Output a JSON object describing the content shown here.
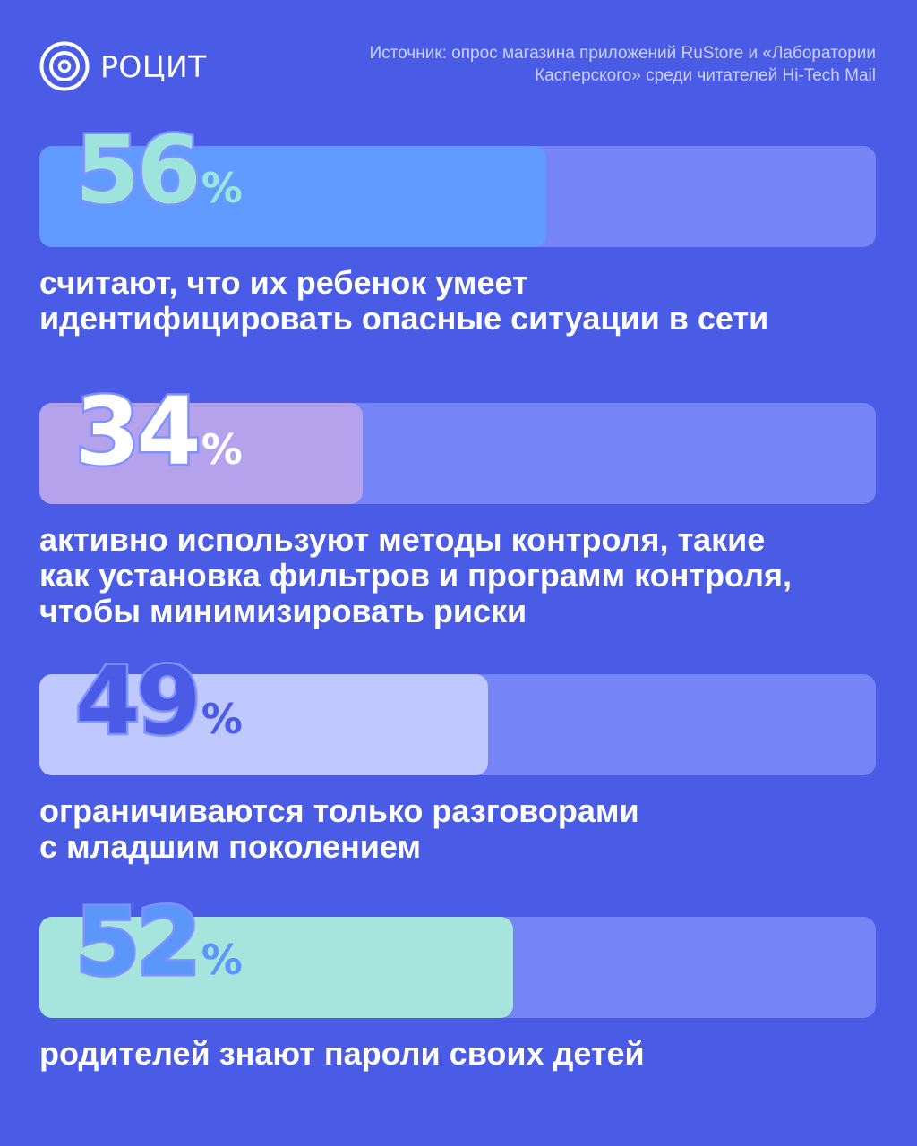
{
  "brand": {
    "name": "РОЦИТ",
    "icon": "concentric-circles-logo-icon"
  },
  "source": {
    "line1": "Источник: опрос магазина приложений RuStore и «Лаборатории",
    "line2": "Касперского» среди читателей Hi-Tech Mail"
  },
  "colors": {
    "background": "#4a5ce6",
    "track": "#7585f5",
    "fill_56": "#619bff",
    "fill_34": "#b5a2ec",
    "fill_49": "#bfc8ff",
    "fill_52": "#a6e5dd",
    "num_56": "#9de4dd",
    "num_34": "#ffffff",
    "num_49": "#4b5be6",
    "num_52": "#5b97f8"
  },
  "chart_data": {
    "type": "bar",
    "orientation": "horizontal",
    "unit": "%",
    "xlim": [
      0,
      100
    ],
    "grid": false,
    "legend": "none",
    "categories": [
      "считают, что их ребенок умеет идентифицировать опасные ситуации в сети",
      "активно используют методы контроля, такие как установка фильтров и программ контроля, чтобы минимизировать риски",
      "ограничиваются только разговорами с младшим поколением",
      "родителей знают пароли своих детей"
    ],
    "values": [
      56,
      34,
      49,
      52
    ]
  },
  "stats": [
    {
      "value": 56,
      "value_text": "56",
      "pct": "%",
      "desc_lines": [
        "считают, что их ребенок умеет",
        "идентифицировать опасные ситуации в сети"
      ]
    },
    {
      "value": 34,
      "value_text": "34",
      "pct": "%",
      "desc_lines": [
        "активно используют методы контроля, такие",
        "как установка фильтров и программ контроля,",
        "чтобы минимизировать риски"
      ]
    },
    {
      "value": 49,
      "value_text": "49",
      "pct": "%",
      "desc_lines": [
        "ограничиваются только разговорами",
        "с младшим поколением"
      ]
    },
    {
      "value": 52,
      "value_text": "52",
      "pct": "%",
      "desc_lines": [
        "родителей знают пароли своих детей"
      ]
    }
  ]
}
